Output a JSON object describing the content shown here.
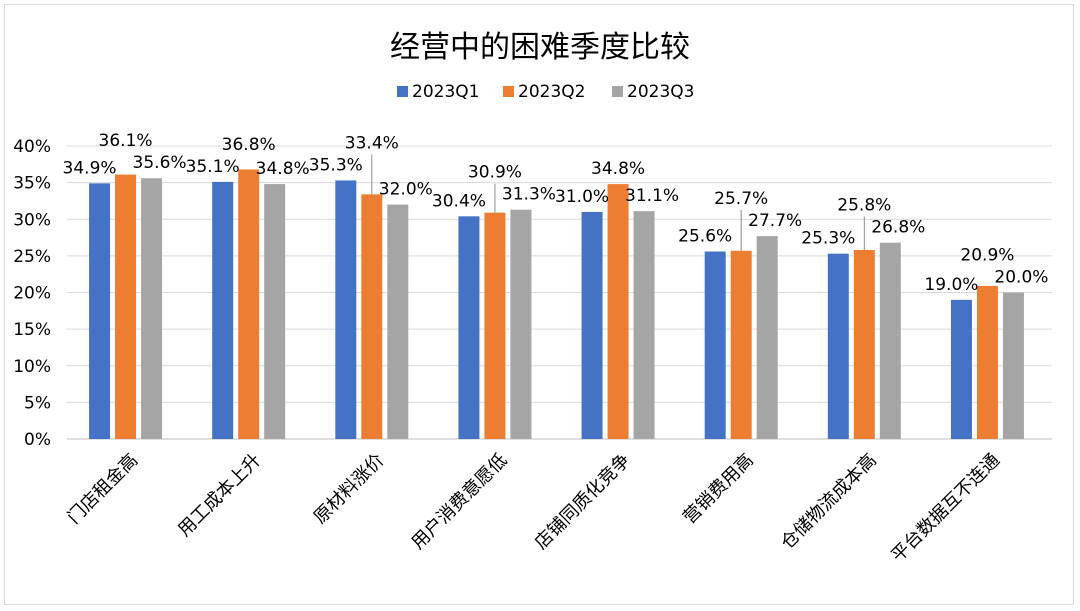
{
  "chart_data": {
    "type": "bar",
    "title": "经营中的困难季度比较",
    "categories": [
      "门店租金高",
      "用工成本上升",
      "原材料涨价",
      "用户消费意愿低",
      "店铺同质化竞争",
      "营销费用高",
      "仓储物流成本高",
      "平台数据互不连通"
    ],
    "series": [
      {
        "name": "2023Q1",
        "color": "#4472c4",
        "values": [
          34.9,
          35.1,
          35.3,
          30.4,
          31.0,
          25.6,
          25.3,
          19.0
        ]
      },
      {
        "name": "2023Q2",
        "color": "#ed7d31",
        "values": [
          36.1,
          36.8,
          33.4,
          30.9,
          34.8,
          25.7,
          25.8,
          20.9
        ]
      },
      {
        "name": "2023Q3",
        "color": "#a5a5a5",
        "values": [
          35.6,
          34.8,
          32.0,
          31.3,
          31.1,
          27.7,
          26.8,
          20.0
        ]
      }
    ],
    "value_labels": [
      [
        "34.9%",
        "35.1%",
        "35.3%",
        "30.4%",
        "31.0%",
        "25.6%",
        "25.3%",
        "19.0%"
      ],
      [
        "36.1%",
        "36.8%",
        "33.4%",
        "30.9%",
        "34.8%",
        "25.7%",
        "25.8%",
        "20.9%"
      ],
      [
        "35.6%",
        "34.8%",
        "32.0%",
        "31.3%",
        "31.1%",
        "27.7%",
        "26.8%",
        "20.0%"
      ]
    ],
    "y_ticks": [
      0,
      5,
      10,
      15,
      20,
      25,
      30,
      35,
      40
    ],
    "y_tick_labels": [
      "0%",
      "5%",
      "10%",
      "15%",
      "20%",
      "25%",
      "30%",
      "35%",
      "40%"
    ],
    "ylim": [
      0,
      40
    ],
    "xlabel": "",
    "ylabel": "",
    "grid": true,
    "legend_position": "top"
  }
}
